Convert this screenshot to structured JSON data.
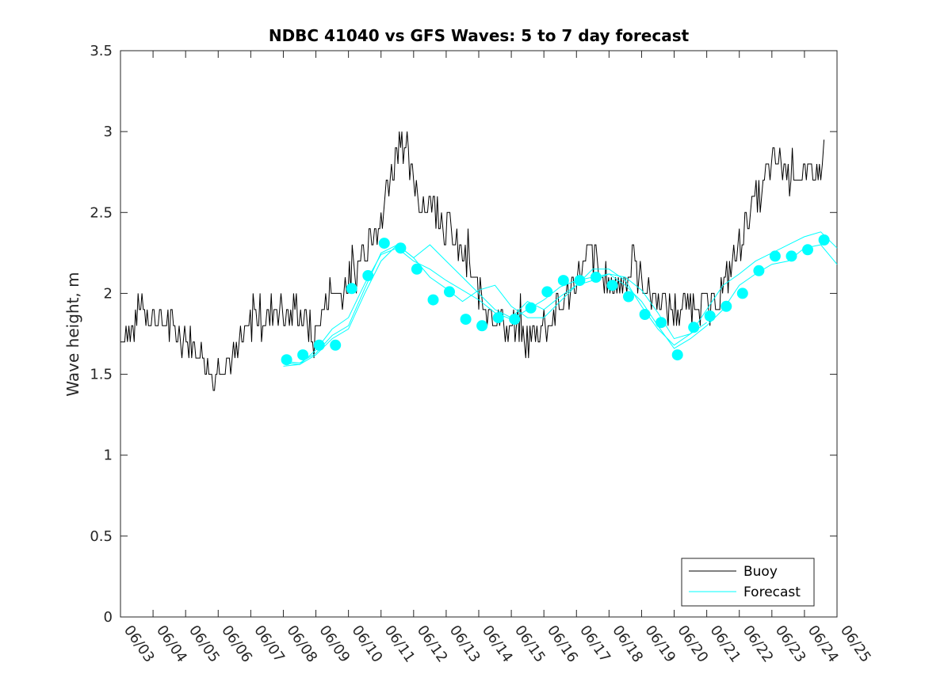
{
  "chart_data": {
    "type": "line",
    "title": "NDBC 41040 vs GFS Waves: 5 to 7 day forecast",
    "xlabel": "",
    "ylabel": "Wave height, m",
    "ylim": [
      0,
      3.5
    ],
    "xlim": [
      "06/03",
      "06/25"
    ],
    "yticks": [
      "0",
      "0.5",
      "1",
      "1.5",
      "2",
      "2.5",
      "3",
      "3.5"
    ],
    "xticks": [
      "06/03",
      "06/04",
      "06/05",
      "06/06",
      "06/07",
      "06/08",
      "06/09",
      "06/10",
      "06/11",
      "06/12",
      "06/13",
      "06/14",
      "06/15",
      "06/16",
      "06/17",
      "06/18",
      "06/19",
      "06/20",
      "06/21",
      "06/22",
      "06/23",
      "06/24",
      "06/25"
    ],
    "grid": false,
    "legend_position": "bottom-right",
    "colors": {
      "buoy": "#000000",
      "forecast": "#00ffff",
      "axes": "#262626"
    },
    "series": [
      {
        "name": "Buoy",
        "style": "line",
        "points": [
          [
            0.0,
            1.75
          ],
          [
            0.3,
            1.75
          ],
          [
            0.5,
            1.85
          ],
          [
            0.7,
            1.95
          ],
          [
            0.9,
            1.85
          ],
          [
            1.2,
            1.85
          ],
          [
            1.5,
            1.8
          ],
          [
            1.8,
            1.75
          ],
          [
            2.1,
            1.7
          ],
          [
            2.4,
            1.65
          ],
          [
            2.6,
            1.6
          ],
          [
            2.75,
            1.5
          ],
          [
            2.85,
            1.45
          ],
          [
            3.0,
            1.55
          ],
          [
            3.3,
            1.6
          ],
          [
            3.6,
            1.6
          ],
          [
            3.9,
            1.75
          ],
          [
            4.2,
            1.85
          ],
          [
            4.5,
            1.85
          ],
          [
            4.8,
            1.9
          ],
          [
            5.1,
            1.85
          ],
          [
            5.4,
            1.9
          ],
          [
            5.7,
            1.85
          ],
          [
            5.9,
            1.7
          ],
          [
            6.1,
            1.85
          ],
          [
            6.3,
            1.95
          ],
          [
            6.6,
            2.0
          ],
          [
            6.9,
            2.05
          ],
          [
            7.2,
            2.1
          ],
          [
            7.5,
            2.3
          ],
          [
            7.8,
            2.45
          ],
          [
            8.0,
            2.4
          ],
          [
            8.2,
            2.7
          ],
          [
            8.4,
            2.8
          ],
          [
            8.6,
            3.0
          ],
          [
            8.8,
            2.85
          ],
          [
            9.0,
            2.7
          ],
          [
            9.3,
            2.5
          ],
          [
            9.6,
            2.55
          ],
          [
            9.9,
            2.45
          ],
          [
            10.2,
            2.35
          ],
          [
            10.5,
            2.25
          ],
          [
            10.8,
            2.1
          ],
          [
            11.0,
            2.0
          ],
          [
            11.3,
            1.9
          ],
          [
            11.6,
            1.85
          ],
          [
            11.9,
            1.8
          ],
          [
            12.2,
            1.75
          ],
          [
            12.4,
            1.7
          ],
          [
            12.7,
            1.75
          ],
          [
            13.0,
            1.8
          ],
          [
            13.3,
            1.85
          ],
          [
            13.6,
            1.95
          ],
          [
            13.9,
            2.05
          ],
          [
            14.2,
            2.15
          ],
          [
            14.4,
            2.25
          ],
          [
            14.6,
            2.2
          ],
          [
            14.9,
            2.05
          ],
          [
            15.2,
            2.05
          ],
          [
            15.5,
            2.1
          ],
          [
            15.8,
            2.15
          ],
          [
            16.0,
            2.05
          ],
          [
            16.3,
            2.0
          ],
          [
            16.6,
            1.95
          ],
          [
            16.9,
            1.9
          ],
          [
            17.2,
            1.9
          ],
          [
            17.5,
            1.95
          ],
          [
            17.8,
            1.95
          ],
          [
            18.1,
            1.9
          ],
          [
            18.4,
            2.0
          ],
          [
            18.7,
            2.1
          ],
          [
            19.0,
            2.3
          ],
          [
            19.3,
            2.5
          ],
          [
            19.6,
            2.6
          ],
          [
            19.9,
            2.75
          ],
          [
            20.2,
            2.8
          ],
          [
            20.5,
            2.75
          ],
          [
            20.8,
            2.75
          ],
          [
            21.1,
            2.7
          ],
          [
            21.3,
            2.75
          ],
          [
            21.5,
            2.75
          ],
          [
            21.6,
            2.95
          ]
        ]
      },
      {
        "name": "Forecast",
        "style": "line",
        "runs": [
          [
            [
              5.0,
              1.57
            ],
            [
              5.5,
              1.56
            ],
            [
              6.0,
              1.62
            ],
            [
              6.5,
              1.72
            ],
            [
              7.0,
              1.78
            ],
            [
              7.5,
              2.0
            ],
            [
              8.0,
              2.2
            ],
            [
              8.5,
              2.3
            ],
            [
              9.0,
              2.22
            ],
            [
              9.5,
              2.3
            ],
            [
              10.0,
              2.2
            ],
            [
              10.5,
              2.1
            ],
            [
              11.0,
              2.0
            ],
            [
              11.5,
              1.9
            ],
            [
              12.0,
              1.85
            ],
            [
              12.5,
              1.95
            ],
            [
              13.0,
              1.9
            ],
            [
              13.5,
              1.98
            ],
            [
              14.0,
              2.05
            ],
            [
              14.5,
              2.08
            ],
            [
              15.0,
              2.12
            ],
            [
              15.5,
              2.1
            ],
            [
              16.0,
              2.02
            ],
            [
              16.5,
              1.88
            ],
            [
              17.0,
              1.72
            ],
            [
              17.5,
              1.75
            ],
            [
              18.0,
              1.82
            ]
          ],
          [
            [
              5.0,
              1.55
            ],
            [
              5.5,
              1.56
            ],
            [
              6.0,
              1.65
            ],
            [
              6.5,
              1.78
            ],
            [
              7.0,
              1.85
            ],
            [
              7.5,
              2.06
            ],
            [
              8.0,
              2.24
            ],
            [
              8.5,
              2.28
            ],
            [
              9.0,
              2.2
            ],
            [
              9.5,
              2.15
            ],
            [
              10.0,
              2.08
            ],
            [
              10.5,
              2.02
            ],
            [
              11.0,
              1.96
            ],
            [
              11.5,
              1.88
            ],
            [
              12.0,
              1.84
            ],
            [
              12.5,
              1.9
            ],
            [
              13.0,
              1.96
            ],
            [
              13.5,
              2.04
            ],
            [
              14.0,
              2.08
            ],
            [
              14.5,
              2.1
            ],
            [
              15.0,
              2.12
            ],
            [
              15.5,
              2.05
            ],
            [
              16.0,
              1.95
            ],
            [
              16.5,
              1.8
            ],
            [
              17.0,
              1.66
            ],
            [
              17.5,
              1.72
            ],
            [
              18.0,
              1.8
            ],
            [
              18.5,
              1.9
            ],
            [
              19.0,
              2.05
            ],
            [
              19.5,
              2.12
            ],
            [
              20.0,
              2.18
            ],
            [
              20.5,
              2.2
            ],
            [
              21.0,
              2.28
            ],
            [
              21.5,
              2.3
            ],
            [
              22.0,
              2.18
            ]
          ],
          [
            [
              5.0,
              1.58
            ],
            [
              5.5,
              1.57
            ],
            [
              6.0,
              1.63
            ],
            [
              6.5,
              1.74
            ],
            [
              7.0,
              1.8
            ],
            [
              7.5,
              2.03
            ],
            [
              8.0,
              2.25
            ],
            [
              8.5,
              2.3
            ],
            [
              9.0,
              2.22
            ],
            [
              9.5,
              2.1
            ],
            [
              10.0,
              2.03
            ],
            [
              10.5,
              1.95
            ],
            [
              11.0,
              2.02
            ],
            [
              11.5,
              2.05
            ],
            [
              12.0,
              1.92
            ],
            [
              12.5,
              1.85
            ],
            [
              13.0,
              1.85
            ],
            [
              13.5,
              1.95
            ],
            [
              14.0,
              2.05
            ],
            [
              14.5,
              2.15
            ],
            [
              15.0,
              2.15
            ],
            [
              15.5,
              2.08
            ],
            [
              16.0,
              1.92
            ],
            [
              16.5,
              1.78
            ],
            [
              17.0,
              1.68
            ],
            [
              17.5,
              1.75
            ],
            [
              18.0,
              1.9
            ],
            [
              18.5,
              2.05
            ],
            [
              19.0,
              2.12
            ],
            [
              19.5,
              2.2
            ],
            [
              20.0,
              2.25
            ],
            [
              20.5,
              2.3
            ],
            [
              21.0,
              2.35
            ],
            [
              21.5,
              2.38
            ],
            [
              22.0,
              2.28
            ]
          ]
        ],
        "markers": [
          [
            5.1,
            1.59
          ],
          [
            5.6,
            1.62
          ],
          [
            6.1,
            1.68
          ],
          [
            6.6,
            1.68
          ],
          [
            7.1,
            2.03
          ],
          [
            7.6,
            2.11
          ],
          [
            8.1,
            2.31
          ],
          [
            8.6,
            2.28
          ],
          [
            9.1,
            2.15
          ],
          [
            9.6,
            1.96
          ],
          [
            10.1,
            2.01
          ],
          [
            10.6,
            1.84
          ],
          [
            11.1,
            1.8
          ],
          [
            11.6,
            1.85
          ],
          [
            12.1,
            1.84
          ],
          [
            12.6,
            1.91
          ],
          [
            13.1,
            2.01
          ],
          [
            13.6,
            2.08
          ],
          [
            14.1,
            2.08
          ],
          [
            14.6,
            2.1
          ],
          [
            15.1,
            2.05
          ],
          [
            15.6,
            1.98
          ],
          [
            16.1,
            1.87
          ],
          [
            16.6,
            1.82
          ],
          [
            17.1,
            1.62
          ],
          [
            17.6,
            1.79
          ],
          [
            18.1,
            1.86
          ],
          [
            18.6,
            1.92
          ],
          [
            19.1,
            2.0
          ],
          [
            19.6,
            2.14
          ],
          [
            20.1,
            2.23
          ],
          [
            20.6,
            2.23
          ],
          [
            21.1,
            2.27
          ],
          [
            21.6,
            2.33
          ]
        ]
      }
    ]
  }
}
